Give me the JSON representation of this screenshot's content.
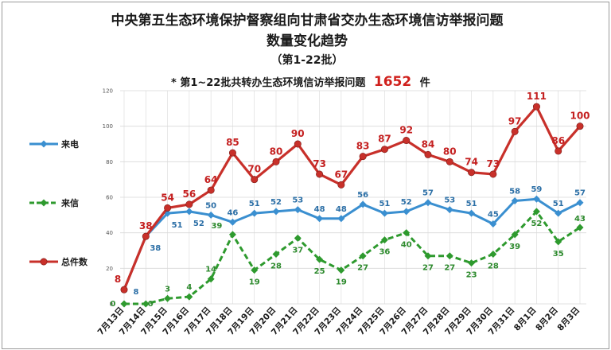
{
  "title": {
    "line1": "中央第五生态环境保护督察组向甘肃省交办生态环境信访举报问题",
    "line2": "数量变化趋势",
    "line3": "（第1-22批）"
  },
  "note": {
    "prefix": "* 第1~22批共转办生态环境信访举报问题",
    "total": "1652",
    "suffix": "件"
  },
  "colors": {
    "phone": "#3a8fd0",
    "letter": "#2e9a2e",
    "total": "#c8302a",
    "grid": "#d8d8d8"
  },
  "chart_data": {
    "type": "line",
    "categories": [
      "7月13日",
      "7月14日",
      "7月15日",
      "7月16日",
      "7月17日",
      "7月18日",
      "7月19日",
      "7月20日",
      "7月21日",
      "7月22日",
      "7月23日",
      "7月24日",
      "7月25日",
      "7月26日",
      "7月27日",
      "7月28日",
      "7月29日",
      "7月30日",
      "7月31日",
      "8月1日",
      "8月2日",
      "8月3日"
    ],
    "ylim": [
      0,
      120
    ],
    "yticks": [
      "0",
      "20",
      "40",
      "60",
      "80",
      "100",
      "120"
    ],
    "grid": true,
    "legend": "left",
    "series": [
      {
        "name": "来电",
        "values": [
          8,
          38,
          51,
          52,
          50,
          46,
          51,
          52,
          53,
          48,
          48,
          56,
          51,
          52,
          57,
          53,
          51,
          45,
          58,
          59,
          51,
          57
        ]
      },
      {
        "name": "来信",
        "values": [
          0,
          0,
          3,
          4,
          14,
          39,
          19,
          28,
          37,
          25,
          19,
          27,
          36,
          40,
          27,
          27,
          23,
          28,
          39,
          52,
          35,
          43
        ]
      },
      {
        "name": "总件数",
        "values": [
          8,
          38,
          54,
          56,
          64,
          85,
          70,
          80,
          90,
          73,
          67,
          83,
          87,
          92,
          84,
          80,
          74,
          73,
          97,
          111,
          86,
          100
        ]
      }
    ]
  }
}
